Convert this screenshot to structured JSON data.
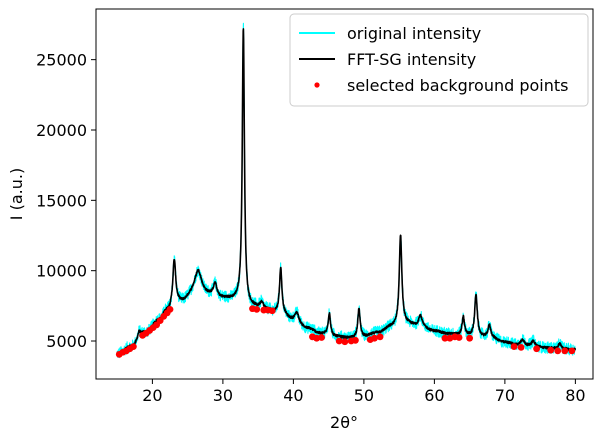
{
  "chart_data": {
    "type": "line",
    "title": "",
    "xlabel": "2θ°",
    "ylabel": "I (a.u.)",
    "xlim": [
      12.0,
      82.5
    ],
    "ylim": [
      2300,
      28600
    ],
    "xticks": [
      20,
      30,
      40,
      50,
      60,
      70,
      80
    ],
    "yticks": [
      5000,
      10000,
      15000,
      20000,
      25000
    ],
    "tick_labels_x": [
      "20",
      "30",
      "40",
      "50",
      "60",
      "70",
      "80"
    ],
    "tick_labels_y": [
      "5000",
      "10000",
      "15000",
      "20000",
      "25000"
    ],
    "grid": false,
    "legend_position": "top-right",
    "x_range": [
      15,
      80
    ],
    "noise_amplitude": 420,
    "baseline_anchors": [
      [
        15,
        4100
      ],
      [
        17,
        4600
      ],
      [
        19,
        5600
      ],
      [
        21,
        6500
      ],
      [
        22,
        7100
      ],
      [
        24,
        7700
      ],
      [
        26,
        8300
      ],
      [
        28,
        8200
      ],
      [
        30,
        8000
      ],
      [
        32,
        7900
      ],
      [
        34,
        7400
      ],
      [
        36,
        7200
      ],
      [
        38,
        7000
      ],
      [
        40,
        6500
      ],
      [
        42,
        5900
      ],
      [
        44,
        5500
      ],
      [
        46,
        5300
      ],
      [
        48,
        5200
      ],
      [
        50,
        5300
      ],
      [
        52,
        5600
      ],
      [
        54,
        6000
      ],
      [
        56,
        6200
      ],
      [
        58,
        6000
      ],
      [
        60,
        5700
      ],
      [
        62,
        5500
      ],
      [
        64,
        5400
      ],
      [
        66,
        5300
      ],
      [
        68,
        5200
      ],
      [
        70,
        4900
      ],
      [
        72,
        4700
      ],
      [
        74,
        4600
      ],
      [
        76,
        4500
      ],
      [
        78,
        4400
      ],
      [
        80,
        4400
      ]
    ],
    "peaks": [
      {
        "center": 18.1,
        "height": 500,
        "width": 0.25
      },
      {
        "center": 23.1,
        "height": 3300,
        "width": 0.25
      },
      {
        "center": 26.5,
        "height": 1700,
        "width": 0.6
      },
      {
        "center": 28.9,
        "height": 900,
        "width": 0.3
      },
      {
        "center": 32.9,
        "height": 19600,
        "width": 0.18
      },
      {
        "center": 35.5,
        "height": 500,
        "width": 0.3
      },
      {
        "center": 38.2,
        "height": 3200,
        "width": 0.2
      },
      {
        "center": 40.5,
        "height": 600,
        "width": 0.3
      },
      {
        "center": 45.1,
        "height": 1600,
        "width": 0.2
      },
      {
        "center": 49.3,
        "height": 2000,
        "width": 0.2
      },
      {
        "center": 55.2,
        "height": 6400,
        "width": 0.22
      },
      {
        "center": 58.0,
        "height": 800,
        "width": 0.3
      },
      {
        "center": 64.1,
        "height": 1300,
        "width": 0.2
      },
      {
        "center": 65.9,
        "height": 3000,
        "width": 0.22
      },
      {
        "center": 67.8,
        "height": 900,
        "width": 0.25
      },
      {
        "center": 72.5,
        "height": 400,
        "width": 0.3
      },
      {
        "center": 74.0,
        "height": 400,
        "width": 0.3
      },
      {
        "center": 77.8,
        "height": 400,
        "width": 0.3
      }
    ],
    "series": [
      {
        "name": "original intensity",
        "color": "#00ffff",
        "style": "line"
      },
      {
        "name": "FFT-SG intensity",
        "color": "#000000",
        "style": "line"
      },
      {
        "name": "selected background points",
        "color": "#ff0000",
        "style": "markers"
      }
    ],
    "background_points": [
      [
        15.3,
        4050
      ],
      [
        15.8,
        4200
      ],
      [
        16.3,
        4300
      ],
      [
        16.8,
        4450
      ],
      [
        17.3,
        4600
      ],
      [
        18.6,
        5400
      ],
      [
        19.1,
        5550
      ],
      [
        19.6,
        5750
      ],
      [
        20.1,
        5950
      ],
      [
        20.6,
        6150
      ],
      [
        21.1,
        6450
      ],
      [
        21.6,
        6750
      ],
      [
        22.1,
        7000
      ],
      [
        22.5,
        7250
      ],
      [
        34.2,
        7300
      ],
      [
        34.8,
        7250
      ],
      [
        35.8,
        7200
      ],
      [
        36.4,
        7200
      ],
      [
        37.0,
        7150
      ],
      [
        42.7,
        5300
      ],
      [
        43.3,
        5200
      ],
      [
        44.0,
        5250
      ],
      [
        46.5,
        5000
      ],
      [
        47.3,
        4950
      ],
      [
        48.2,
        5000
      ],
      [
        48.8,
        5050
      ],
      [
        50.9,
        5100
      ],
      [
        51.5,
        5200
      ],
      [
        52.3,
        5300
      ],
      [
        61.5,
        5200
      ],
      [
        62.2,
        5200
      ],
      [
        62.9,
        5300
      ],
      [
        63.5,
        5250
      ],
      [
        65.0,
        5200
      ],
      [
        71.3,
        4600
      ],
      [
        72.3,
        4550
      ],
      [
        74.5,
        4450
      ],
      [
        76.5,
        4350
      ],
      [
        77.5,
        4300
      ],
      [
        78.5,
        4300
      ],
      [
        79.5,
        4300
      ]
    ]
  }
}
